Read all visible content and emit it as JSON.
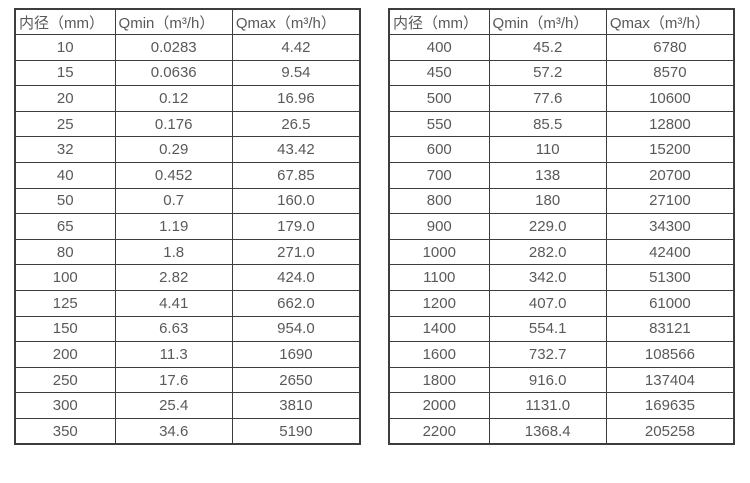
{
  "colors": {
    "border": "#3d3d3d",
    "text": "#595959",
    "background": "#ffffff"
  },
  "tables": [
    {
      "name": "flow-spec-table-small-diameters",
      "headers": [
        "内径（mm）",
        "Qmin（m³/h）",
        "Qmax（m³/h）"
      ],
      "rows": [
        [
          "10",
          "0.0283",
          "4.42"
        ],
        [
          "15",
          "0.0636",
          "9.54"
        ],
        [
          "20",
          "0.12",
          "16.96"
        ],
        [
          "25",
          "0.176",
          "26.5"
        ],
        [
          "32",
          "0.29",
          "43.42"
        ],
        [
          "40",
          "0.452",
          "67.85"
        ],
        [
          "50",
          "0.7",
          "160.0"
        ],
        [
          "65",
          "1.19",
          "179.0"
        ],
        [
          "80",
          "1.8",
          "271.0"
        ],
        [
          "100",
          "2.82",
          "424.0"
        ],
        [
          "125",
          "4.41",
          "662.0"
        ],
        [
          "150",
          "6.63",
          "954.0"
        ],
        [
          "200",
          "11.3",
          "1690"
        ],
        [
          "250",
          "17.6",
          "2650"
        ],
        [
          "300",
          "25.4",
          "3810"
        ],
        [
          "350",
          "34.6",
          "5190"
        ]
      ]
    },
    {
      "name": "flow-spec-table-large-diameters",
      "headers": [
        "内径（mm）",
        "Qmin（m³/h）",
        "Qmax（m³/h）"
      ],
      "rows": [
        [
          "400",
          "45.2",
          "6780"
        ],
        [
          "450",
          "57.2",
          "8570"
        ],
        [
          "500",
          "77.6",
          "10600"
        ],
        [
          "550",
          "85.5",
          "12800"
        ],
        [
          "600",
          "110",
          "15200"
        ],
        [
          "700",
          "138",
          "20700"
        ],
        [
          "800",
          "180",
          "27100"
        ],
        [
          "900",
          "229.0",
          "34300"
        ],
        [
          "1000",
          "282.0",
          "42400"
        ],
        [
          "1100",
          "342.0",
          "51300"
        ],
        [
          "1200",
          "407.0",
          "61000"
        ],
        [
          "1400",
          "554.1",
          "83121"
        ],
        [
          "1600",
          "732.7",
          "108566"
        ],
        [
          "1800",
          "916.0",
          "137404"
        ],
        [
          "2000",
          "1131.0",
          "169635"
        ],
        [
          "2200",
          "1368.4",
          "205258"
        ]
      ]
    }
  ]
}
